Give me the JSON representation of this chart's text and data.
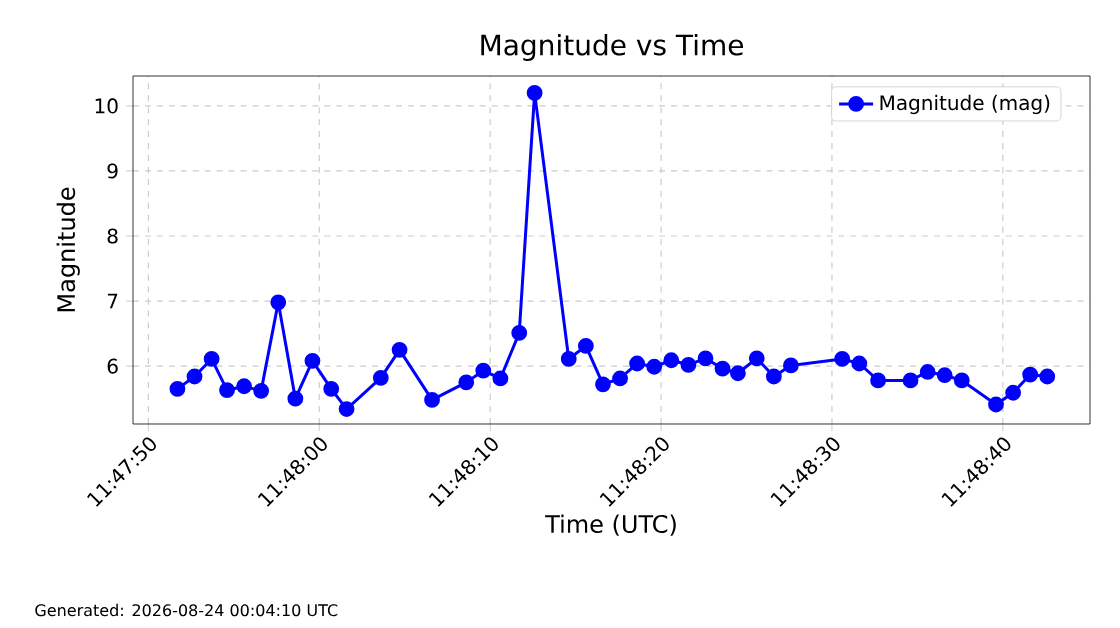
{
  "chart_data": {
    "type": "line",
    "title": "Magnitude vs Time",
    "xlabel": "Time (UTC)",
    "ylabel": "Magnitude",
    "x": [
      11.797694,
      11.797972,
      11.79825,
      11.7985,
      11.798778,
      11.799055,
      11.799333,
      11.799611,
      11.799889,
      11.800194,
      11.800444,
      11.801,
      11.801305,
      11.801833,
      11.802389,
      11.802666,
      11.802944,
      11.80325,
      11.8035,
      11.804055,
      11.804333,
      11.804611,
      11.804889,
      11.805166,
      11.805444,
      11.805722,
      11.806,
      11.806278,
      11.806555,
      11.806805,
      11.807111,
      11.807389,
      11.807666,
      11.8085,
      11.808778,
      11.809083,
      11.809611,
      11.809889,
      11.810166,
      11.810444,
      11.811,
      11.811278,
      11.811555,
      11.811833
    ],
    "series": [
      {
        "name": "Magnitude (mag)",
        "color": "#0000ff",
        "values": [
          5.65,
          5.84,
          6.11,
          5.63,
          5.69,
          5.62,
          6.98,
          5.5,
          6.08,
          5.65,
          5.34,
          5.82,
          6.25,
          5.48,
          5.75,
          5.93,
          5.81,
          6.51,
          10.2,
          6.11,
          6.31,
          5.72,
          5.81,
          6.04,
          5.99,
          6.09,
          6.02,
          6.12,
          5.96,
          5.89,
          6.12,
          5.84,
          6.01,
          6.11,
          6.04,
          5.78,
          5.78,
          5.91,
          5.86,
          5.78,
          5.41,
          5.59,
          5.87,
          5.84
        ]
      }
    ],
    "xlim": [
      11.796972,
      11.812528
    ],
    "xticks": [
      {
        "value": 11.797222,
        "label": "11:47:50"
      },
      {
        "value": 11.8,
        "label": "11:48:00"
      },
      {
        "value": 11.802778,
        "label": "11:48:10"
      },
      {
        "value": 11.805556,
        "label": "11:48:20"
      },
      {
        "value": 11.808333,
        "label": "11:48:30"
      },
      {
        "value": 11.811111,
        "label": "11:48:40"
      }
    ],
    "ylim": [
      5.11,
      10.46
    ],
    "yticks": [
      6,
      7,
      8,
      9,
      10
    ],
    "grid": true,
    "legend": "top right",
    "marker": "circle",
    "line_style": "solid",
    "annotations": [
      "Generated: 2026-08-24 00:04:10 UTC"
    ]
  }
}
